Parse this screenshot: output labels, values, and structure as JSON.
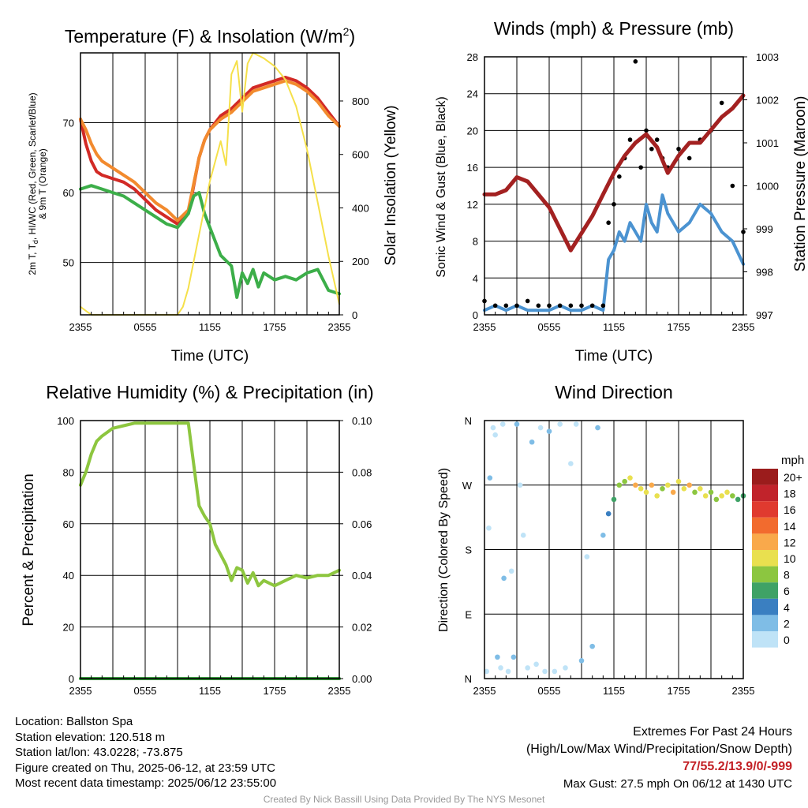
{
  "panels": {
    "temperature": {
      "title": "Temperature (F) & Insolation (W/m",
      "title_sup": "2",
      "title_end": ")",
      "ylabel_left": "2m T, T",
      "ylabel_left_sub": "d",
      "ylabel_left_rest": ", HI/WC (Red, Green, Scarlet/Blue)",
      "ylabel_left_line2": "& 9m T (Orange)",
      "ylabel_right": "Solar Insolation (Yellow)",
      "xlabel": "Time (UTC)"
    },
    "winds": {
      "title": "Winds (mph) & Pressure (mb)",
      "ylabel_left": "Sonic Wind & Gust (Blue, Black)",
      "ylabel_right": "Station Pressure (Maroon)",
      "xlabel": "Time (UTC)"
    },
    "humidity": {
      "title": "Relative Humidity (%) & Precipitation (in)",
      "ylabel_left": "Percent & Precipitation"
    },
    "direction": {
      "title": "Wind Direction",
      "ylabel_left": "Direction (Colored By Speed)",
      "legend_title": "mph"
    }
  },
  "chart_data": [
    {
      "type": "line",
      "title": "Temperature (F) & Insolation (W/m2)",
      "xlabel": "Time (UTC)",
      "ylabel": "2m T, Td, HI/WC (Red, Green, Scarlet/Blue) & 9m T (Orange)",
      "y2label": "Solar Insolation (Yellow)",
      "x_ticks": [
        "2355",
        "0555",
        "1155",
        "1755",
        "2355"
      ],
      "xlim": [
        0,
        24
      ],
      "ylim": [
        42.5,
        80
      ],
      "y_ticks": [
        50,
        60,
        70
      ],
      "y2lim": [
        0,
        980
      ],
      "y2_ticks": [
        0,
        200,
        400,
        600,
        800
      ],
      "grid": true,
      "series": [
        {
          "name": "2m T",
          "axis": "left",
          "color": "#d22a26",
          "x": [
            0,
            0.5,
            1,
            1.5,
            2,
            3,
            4,
            5,
            6,
            7,
            8,
            9,
            10,
            11,
            11.5,
            12,
            13,
            14,
            15,
            16,
            17,
            18,
            19,
            20,
            21,
            22,
            23,
            24
          ],
          "values": [
            70.5,
            67,
            64.5,
            63,
            62.5,
            62,
            61.5,
            60.5,
            59,
            57.5,
            56.5,
            55.5,
            57,
            65,
            67.5,
            69,
            71,
            72,
            73.5,
            75,
            75.5,
            76,
            76.5,
            76,
            75,
            73.5,
            71.5,
            69.5
          ]
        },
        {
          "name": "9m T",
          "axis": "left",
          "color": "#f28a2e",
          "x": [
            0,
            0.5,
            1,
            1.5,
            2,
            3,
            4,
            5,
            6,
            7,
            8,
            9,
            10,
            11,
            11.5,
            12,
            13,
            14,
            15,
            16,
            17,
            18,
            19,
            20,
            21,
            22,
            23,
            24
          ],
          "values": [
            70.5,
            69,
            67,
            65.5,
            64.5,
            63.5,
            62.5,
            61.5,
            60,
            58.5,
            57.5,
            56,
            57.5,
            65,
            67.5,
            69,
            70.5,
            71.5,
            73,
            74.5,
            75,
            75.5,
            76,
            75.5,
            74.5,
            73,
            71,
            69.5
          ]
        },
        {
          "name": "Td",
          "axis": "left",
          "color": "#3cae49",
          "x": [
            0,
            1,
            2,
            3,
            4,
            5,
            6,
            7,
            8,
            9,
            10,
            10.5,
            11,
            11.5,
            12,
            13,
            14,
            14.5,
            15,
            15.5,
            16,
            16.5,
            17,
            18,
            19,
            20,
            21,
            22,
            23,
            24
          ],
          "values": [
            60.5,
            61,
            60.5,
            60,
            59.5,
            58.5,
            57.5,
            56.5,
            55.5,
            55,
            57,
            59.5,
            60,
            57,
            55,
            51,
            49.5,
            45,
            48.5,
            47,
            49,
            46.5,
            48.5,
            47.5,
            48,
            47.5,
            48.5,
            49,
            46,
            45.5
          ]
        },
        {
          "name": "Solar Insolation",
          "axis": "right",
          "color": "#f5e04a",
          "x": [
            0,
            1,
            2,
            3,
            4,
            5,
            6,
            7,
            8,
            9,
            9.5,
            10,
            11,
            12,
            13,
            13.5,
            14,
            14.5,
            15,
            15.5,
            16,
            17,
            18,
            19,
            20,
            21,
            22,
            23,
            24
          ],
          "values": [
            30,
            0,
            0,
            0,
            0,
            0,
            0,
            0,
            0,
            0,
            30,
            100,
            300,
            500,
            650,
            560,
            900,
            950,
            760,
            940,
            980,
            960,
            930,
            880,
            780,
            620,
            420,
            220,
            40
          ]
        }
      ]
    },
    {
      "type": "line",
      "title": "Winds (mph) & Pressure (mb)",
      "xlabel": "Time (UTC)",
      "ylabel": "Sonic Wind & Gust (Blue, Black)",
      "y2label": "Station Pressure (Maroon)",
      "x_ticks": [
        "2355",
        "0555",
        "1155",
        "1755",
        "2355"
      ],
      "xlim": [
        0,
        24
      ],
      "ylim": [
        0,
        28
      ],
      "y_ticks": [
        0,
        4,
        8,
        12,
        16,
        20,
        24,
        28
      ],
      "y2lim": [
        997,
        1003
      ],
      "y2_ticks": [
        997,
        998,
        999,
        1000,
        1001,
        1002,
        1003
      ],
      "grid": true,
      "series": [
        {
          "name": "Sonic Wind",
          "axis": "left",
          "color": "#4b93d1",
          "x": [
            0,
            1,
            2,
            3,
            4,
            5,
            6,
            7,
            8,
            9,
            10,
            11,
            11.5,
            12,
            12.5,
            13,
            13.5,
            14,
            14.5,
            15,
            15.5,
            16,
            16.5,
            17,
            18,
            19,
            20,
            21,
            22,
            23,
            24
          ],
          "values": [
            0.5,
            1,
            0.5,
            1,
            0.5,
            0.5,
            0.5,
            1,
            0.5,
            0.5,
            1,
            0.5,
            6,
            7,
            9,
            8,
            10,
            9,
            8,
            12,
            10,
            9,
            13,
            11,
            9,
            10,
            12,
            11,
            9,
            8,
            5.5
          ]
        },
        {
          "name": "Gust",
          "axis": "left",
          "color": "#000000",
          "x": [
            0,
            1,
            2,
            3,
            4,
            5,
            6,
            7,
            8,
            9,
            10,
            11,
            11.5,
            12,
            12.5,
            13,
            13.5,
            14,
            14.5,
            15,
            15.5,
            16,
            16.5,
            17,
            18,
            19,
            20,
            21,
            22,
            23,
            24
          ],
          "values": [
            1.5,
            1,
            1,
            1,
            1.5,
            1,
            1,
            1,
            1,
            1,
            1,
            1,
            10,
            12,
            15,
            17,
            19,
            27.5,
            16,
            20,
            18,
            19,
            17,
            16,
            18,
            17,
            19,
            20,
            23,
            14,
            9
          ]
        },
        {
          "name": "Station Pressure",
          "axis": "right",
          "color": "#a32121",
          "x": [
            0,
            1,
            2,
            3,
            4,
            5,
            6,
            7,
            8,
            9,
            10,
            11,
            12,
            13,
            14,
            15,
            16,
            17,
            18,
            19,
            20,
            21,
            22,
            23,
            24
          ],
          "values": [
            999.8,
            999.8,
            999.9,
            1000.2,
            1000.1,
            999.8,
            999.5,
            999.0,
            998.5,
            998.9,
            999.3,
            999.8,
            1000.3,
            1000.7,
            1001.0,
            1001.2,
            1000.9,
            1000.3,
            1000.7,
            1001.0,
            1001.0,
            1001.3,
            1001.6,
            1001.8,
            1002.1
          ]
        }
      ]
    },
    {
      "type": "line",
      "title": "Relative Humidity (%) & Precipitation (in)",
      "ylabel": "Percent & Precipitation",
      "x_ticks": [
        "2355",
        "0555",
        "1155",
        "1755",
        "2355"
      ],
      "xlim": [
        0,
        24
      ],
      "ylim": [
        0,
        100
      ],
      "y_ticks": [
        0,
        20,
        40,
        60,
        80,
        100
      ],
      "y2lim": [
        0,
        0.1
      ],
      "y2_ticks": [
        "0.00",
        "0.02",
        "0.04",
        "0.06",
        "0.08",
        "0.10"
      ],
      "grid": true,
      "series": [
        {
          "name": "Relative Humidity",
          "axis": "left",
          "color": "#8dc63f",
          "x": [
            0,
            0.5,
            1,
            1.5,
            2,
            3,
            4,
            5,
            6,
            7,
            8,
            9,
            10,
            11,
            11.5,
            12,
            12.5,
            13,
            13.5,
            14,
            14.5,
            15,
            15.5,
            16,
            16.5,
            17,
            18,
            19,
            20,
            21,
            22,
            23,
            24
          ],
          "values": [
            75,
            80,
            87,
            92,
            94,
            97,
            98,
            99,
            99,
            99,
            99,
            99,
            99,
            67,
            63,
            60,
            52,
            48,
            44,
            38,
            43,
            42,
            37,
            41,
            36,
            38,
            36,
            38,
            40,
            39,
            40,
            40,
            42
          ]
        },
        {
          "name": "Precipitation",
          "axis": "right",
          "color": "#3a9a3f",
          "x": [
            0,
            24
          ],
          "values": [
            0,
            0
          ]
        }
      ]
    },
    {
      "type": "scatter",
      "title": "Wind Direction",
      "ylabel": "Direction (Colored By Speed)",
      "x_ticks": [
        "2355",
        "0555",
        "1155",
        "1755",
        "2355"
      ],
      "xlim": [
        0,
        24
      ],
      "ylim": [
        0,
        360
      ],
      "y_ticks": [
        "N",
        "E",
        "S",
        "W",
        "N"
      ],
      "grid": true,
      "legend": {
        "title": "mph",
        "labels": [
          "20+",
          "18",
          "16",
          "14",
          "12",
          "10",
          "8",
          "6",
          "4",
          "2",
          "0"
        ],
        "colors": [
          "#9b1c1c",
          "#c1232b",
          "#e03a2f",
          "#f26b2e",
          "#f9a94b",
          "#e9e04f",
          "#8cc640",
          "#3fa266",
          "#3a7fc1",
          "#7fbde6",
          "#bfe3f7"
        ],
        "placement": "right"
      },
      "points_summary": [
        {
          "x": 0.2,
          "dir": 10,
          "speed": 0
        },
        {
          "x": 0.4,
          "dir": 210,
          "speed": 0
        },
        {
          "x": 0.5,
          "dir": 280,
          "speed": 1
        },
        {
          "x": 0.8,
          "dir": 350,
          "speed": 0
        },
        {
          "x": 1.0,
          "dir": 340,
          "speed": 0
        },
        {
          "x": 1.2,
          "dir": 30,
          "speed": 1
        },
        {
          "x": 1.5,
          "dir": 15,
          "speed": 0
        },
        {
          "x": 1.7,
          "dir": 355,
          "speed": 0
        },
        {
          "x": 1.8,
          "dir": 140,
          "speed": 1
        },
        {
          "x": 2.2,
          "dir": 10,
          "speed": 0
        },
        {
          "x": 2.5,
          "dir": 150,
          "speed": 0
        },
        {
          "x": 2.7,
          "dir": 30,
          "speed": 1
        },
        {
          "x": 3.0,
          "dir": 355,
          "speed": 1
        },
        {
          "x": 3.3,
          "dir": 270,
          "speed": 0
        },
        {
          "x": 3.6,
          "dir": 200,
          "speed": 0
        },
        {
          "x": 4.0,
          "dir": 15,
          "speed": 0
        },
        {
          "x": 4.4,
          "dir": 330,
          "speed": 1
        },
        {
          "x": 4.8,
          "dir": 20,
          "speed": 0
        },
        {
          "x": 5.2,
          "dir": 350,
          "speed": 0
        },
        {
          "x": 5.6,
          "dir": 10,
          "speed": 0
        },
        {
          "x": 6.0,
          "dir": 345,
          "speed": 1
        },
        {
          "x": 6.5,
          "dir": 10,
          "speed": 0
        },
        {
          "x": 7.0,
          "dir": 355,
          "speed": 0
        },
        {
          "x": 7.5,
          "dir": 15,
          "speed": 0
        },
        {
          "x": 8.0,
          "dir": 300,
          "speed": 0
        },
        {
          "x": 8.5,
          "dir": 355,
          "speed": 0
        },
        {
          "x": 9.0,
          "dir": 25,
          "speed": 1
        },
        {
          "x": 9.5,
          "dir": 170,
          "speed": 0
        },
        {
          "x": 10.0,
          "dir": 45,
          "speed": 1
        },
        {
          "x": 10.5,
          "dir": 350,
          "speed": 1
        },
        {
          "x": 11.0,
          "dir": 200,
          "speed": 1
        },
        {
          "x": 11.5,
          "dir": 230,
          "speed": 4
        },
        {
          "x": 12.0,
          "dir": 250,
          "speed": 6
        },
        {
          "x": 12.5,
          "dir": 270,
          "speed": 7
        },
        {
          "x": 13.0,
          "dir": 275,
          "speed": 8
        },
        {
          "x": 13.5,
          "dir": 280,
          "speed": 10
        },
        {
          "x": 14.0,
          "dir": 270,
          "speed": 12
        },
        {
          "x": 14.5,
          "dir": 265,
          "speed": 9
        },
        {
          "x": 15.0,
          "dir": 260,
          "speed": 10
        },
        {
          "x": 15.5,
          "dir": 270,
          "speed": 12
        },
        {
          "x": 16.0,
          "dir": 255,
          "speed": 10
        },
        {
          "x": 16.5,
          "dir": 265,
          "speed": 8
        },
        {
          "x": 17.0,
          "dir": 270,
          "speed": 10
        },
        {
          "x": 17.5,
          "dir": 260,
          "speed": 11
        },
        {
          "x": 18.0,
          "dir": 275,
          "speed": 9
        },
        {
          "x": 18.5,
          "dir": 265,
          "speed": 10
        },
        {
          "x": 19.0,
          "dir": 270,
          "speed": 12
        },
        {
          "x": 19.5,
          "dir": 260,
          "speed": 8
        },
        {
          "x": 20.0,
          "dir": 265,
          "speed": 10
        },
        {
          "x": 20.5,
          "dir": 255,
          "speed": 9
        },
        {
          "x": 21.0,
          "dir": 260,
          "speed": 7
        },
        {
          "x": 21.5,
          "dir": 250,
          "speed": 8
        },
        {
          "x": 22.0,
          "dir": 255,
          "speed": 10
        },
        {
          "x": 22.5,
          "dir": 260,
          "speed": 9
        },
        {
          "x": 23.0,
          "dir": 255,
          "speed": 8
        },
        {
          "x": 23.5,
          "dir": 250,
          "speed": 6
        },
        {
          "x": 24.0,
          "dir": 255,
          "speed": 6
        }
      ]
    }
  ],
  "station": {
    "location": "Location: Ballston Spa",
    "elevation": "Station elevation: 120.518 m",
    "latlon": "Station lat/lon: 43.0228; -73.875",
    "created": "Figure created on Thu, 2025-06-12, at 23:59 UTC",
    "recent": "Most recent data timestamp: 2025/06/12 23:55:00"
  },
  "extremes": {
    "heading": "Extremes For Past 24 Hours",
    "subheading": "(High/Low/Max Wind/Precipitation/Snow Depth)",
    "values": "77/55.2/13.9/0/-999",
    "gust": "Max Gust: 27.5 mph On 06/12 at 1430 UTC",
    "accent_color": "#c32126"
  },
  "credit": "Created By Nick Bassill Using Data Provided By The NYS Mesonet"
}
